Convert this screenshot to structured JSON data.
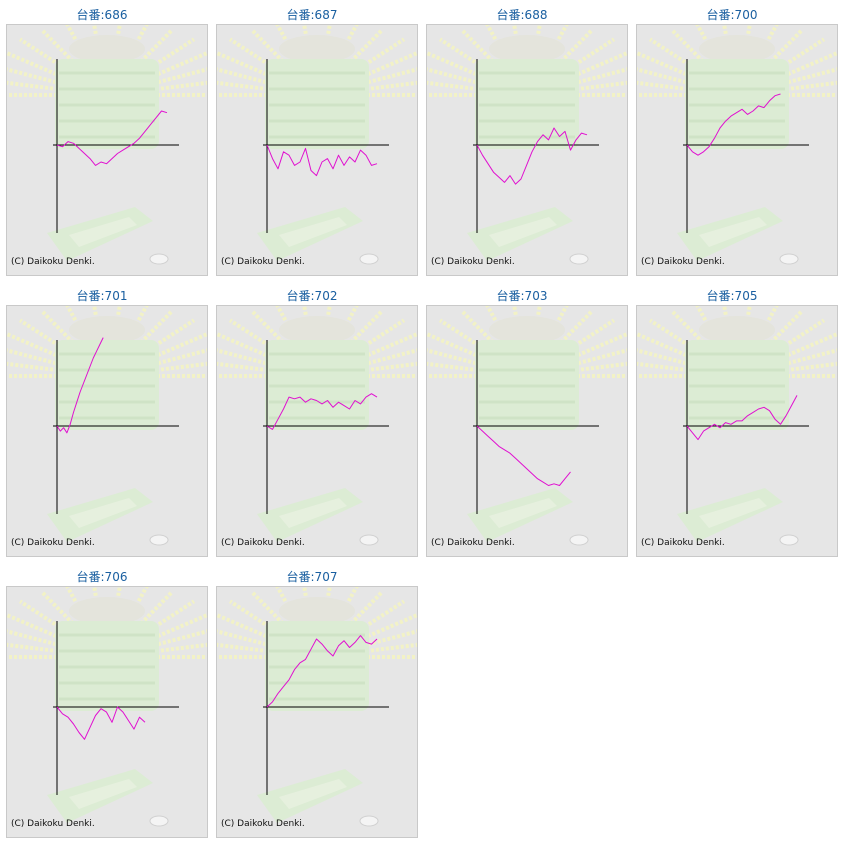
{
  "colors": {
    "line": "#e010d0",
    "axis": "#000000",
    "frame_bg": "#e6e6e6",
    "title": "#1a5fa0"
  },
  "copyright": "(C) Daikoku Denki.",
  "chart_data": [
    {
      "type": "line",
      "title": "台番:686",
      "x": [
        0,
        5,
        10,
        15,
        20,
        25,
        30,
        35,
        40,
        45,
        50,
        55,
        60,
        65,
        70,
        75,
        80,
        85,
        90,
        95,
        100
      ],
      "values": [
        0,
        -0.1,
        0.2,
        0.1,
        -0.2,
        -0.5,
        -0.8,
        -1.2,
        -1.0,
        -1.1,
        -0.8,
        -0.5,
        -0.3,
        -0.1,
        0.1,
        0.4,
        0.8,
        1.2,
        1.6,
        2.0,
        1.9
      ]
    },
    {
      "type": "line",
      "title": "台番:687",
      "x": [
        0,
        5,
        10,
        15,
        20,
        25,
        30,
        35,
        40,
        45,
        50,
        55,
        60,
        65,
        70,
        75,
        80,
        85,
        90,
        95,
        100
      ],
      "values": [
        0,
        -0.8,
        -1.4,
        -0.4,
        -0.6,
        -1.2,
        -1.0,
        -0.2,
        -1.5,
        -1.8,
        -1.0,
        -0.8,
        -1.4,
        -0.6,
        -1.2,
        -0.7,
        -1.0,
        -0.3,
        -0.6,
        -1.2,
        -1.1
      ]
    },
    {
      "type": "line",
      "title": "台番:688",
      "x": [
        0,
        5,
        10,
        15,
        20,
        25,
        30,
        35,
        40,
        45,
        50,
        55,
        60,
        65,
        70,
        75,
        80,
        85,
        90,
        95,
        100
      ],
      "values": [
        0,
        -0.6,
        -1.1,
        -1.6,
        -1.9,
        -2.2,
        -1.8,
        -2.3,
        -2.0,
        -1.2,
        -0.4,
        0.2,
        0.6,
        0.3,
        1.0,
        0.5,
        0.8,
        -0.3,
        0.3,
        0.7,
        0.6
      ]
    },
    {
      "type": "line",
      "title": "台番:700",
      "x": [
        0,
        5,
        10,
        15,
        20,
        25,
        30,
        35,
        40,
        45,
        50,
        55,
        60,
        65,
        70,
        75,
        80,
        85
      ],
      "values": [
        0,
        -0.4,
        -0.6,
        -0.4,
        -0.1,
        0.4,
        1.0,
        1.4,
        1.7,
        1.9,
        2.1,
        1.8,
        2.0,
        2.3,
        2.2,
        2.6,
        2.9,
        3.0
      ]
    },
    {
      "type": "line",
      "title": "台番:701",
      "x": [
        0,
        3,
        6,
        9,
        12,
        15,
        18,
        21,
        24,
        27,
        30,
        33,
        36,
        39,
        42
      ],
      "values": [
        0,
        -0.3,
        -0.1,
        -0.4,
        0.1,
        0.8,
        1.4,
        2.0,
        2.5,
        3.0,
        3.5,
        4.0,
        4.4,
        4.8,
        5.2
      ]
    },
    {
      "type": "line",
      "title": "台番:702",
      "x": [
        0,
        5,
        10,
        15,
        20,
        25,
        30,
        35,
        40,
        45,
        50,
        55,
        60,
        65,
        70,
        75,
        80,
        85,
        90,
        95,
        100
      ],
      "values": [
        0,
        -0.2,
        0.4,
        1.0,
        1.7,
        1.6,
        1.7,
        1.4,
        1.6,
        1.5,
        1.3,
        1.5,
        1.1,
        1.4,
        1.2,
        1.0,
        1.5,
        1.3,
        1.7,
        1.9,
        1.7
      ]
    },
    {
      "type": "line",
      "title": "台番:703",
      "x": [
        0,
        5,
        10,
        15,
        20,
        25,
        30,
        35,
        40,
        45,
        50,
        55,
        60,
        65,
        70,
        75,
        80,
        85
      ],
      "values": [
        0,
        -0.3,
        -0.6,
        -0.9,
        -1.2,
        -1.4,
        -1.6,
        -1.9,
        -2.2,
        -2.5,
        -2.8,
        -3.1,
        -3.3,
        -3.5,
        -3.4,
        -3.5,
        -3.1,
        -2.7
      ]
    },
    {
      "type": "line",
      "title": "台番:705",
      "x": [
        0,
        5,
        10,
        15,
        20,
        25,
        30,
        35,
        40,
        45,
        50,
        55,
        60,
        65,
        70,
        75,
        80,
        85,
        90,
        95,
        100
      ],
      "values": [
        0,
        -0.4,
        -0.8,
        -0.3,
        -0.1,
        0.1,
        -0.1,
        0.2,
        0.1,
        0.3,
        0.3,
        0.6,
        0.8,
        1.0,
        1.1,
        0.9,
        0.4,
        0.1,
        0.6,
        1.2,
        1.8
      ]
    },
    {
      "type": "line",
      "title": "台番:706",
      "x": [
        0,
        5,
        10,
        15,
        20,
        25,
        30,
        35,
        40,
        45,
        50,
        55,
        60,
        65,
        70,
        75,
        80
      ],
      "values": [
        0,
        -0.4,
        -0.6,
        -1.0,
        -1.5,
        -1.9,
        -1.2,
        -0.5,
        -0.1,
        -0.3,
        -0.9,
        0.0,
        -0.3,
        -0.8,
        -1.3,
        -0.6,
        -0.9
      ]
    },
    {
      "type": "line",
      "title": "台番:707",
      "x": [
        0,
        5,
        10,
        15,
        20,
        25,
        30,
        35,
        40,
        45,
        50,
        55,
        60,
        65,
        70,
        75,
        80,
        85,
        90,
        95,
        100
      ],
      "values": [
        0,
        0.3,
        0.8,
        1.2,
        1.6,
        2.2,
        2.6,
        2.8,
        3.4,
        4.0,
        3.7,
        3.3,
        3.0,
        3.6,
        3.9,
        3.5,
        3.8,
        4.2,
        3.8,
        3.7,
        4.0
      ]
    }
  ]
}
